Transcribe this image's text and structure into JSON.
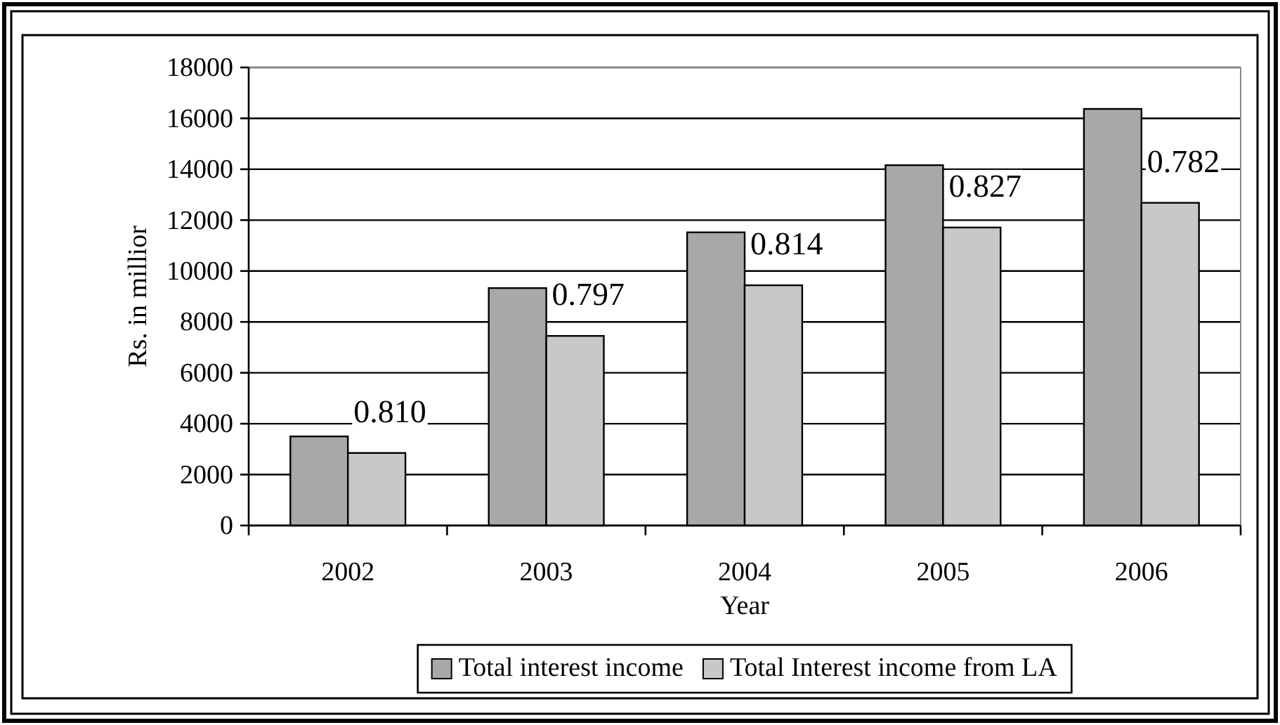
{
  "chart_data": {
    "type": "bar",
    "xlabel": "Year",
    "ylabel": "Rs. in millior",
    "categories": [
      "2002",
      "2003",
      "2004",
      "2005",
      "2006"
    ],
    "series": [
      {
        "name": "Total interest income",
        "color": "#a8a8a8",
        "values": [
          3500,
          9330,
          11520,
          14160,
          16370
        ]
      },
      {
        "name": "Total Interest income from LA",
        "color": "#c8c8c8",
        "values": [
          2850,
          7450,
          9440,
          11710,
          12680
        ]
      }
    ],
    "ylim": [
      0,
      18000
    ],
    "yticks": [
      0,
      2000,
      4000,
      6000,
      8000,
      10000,
      12000,
      14000,
      16000,
      18000
    ],
    "grid": "y",
    "legend": "bottom",
    "annotations": [
      "0.810",
      "0.797",
      "0.814",
      "0.827",
      "0.782"
    ]
  }
}
